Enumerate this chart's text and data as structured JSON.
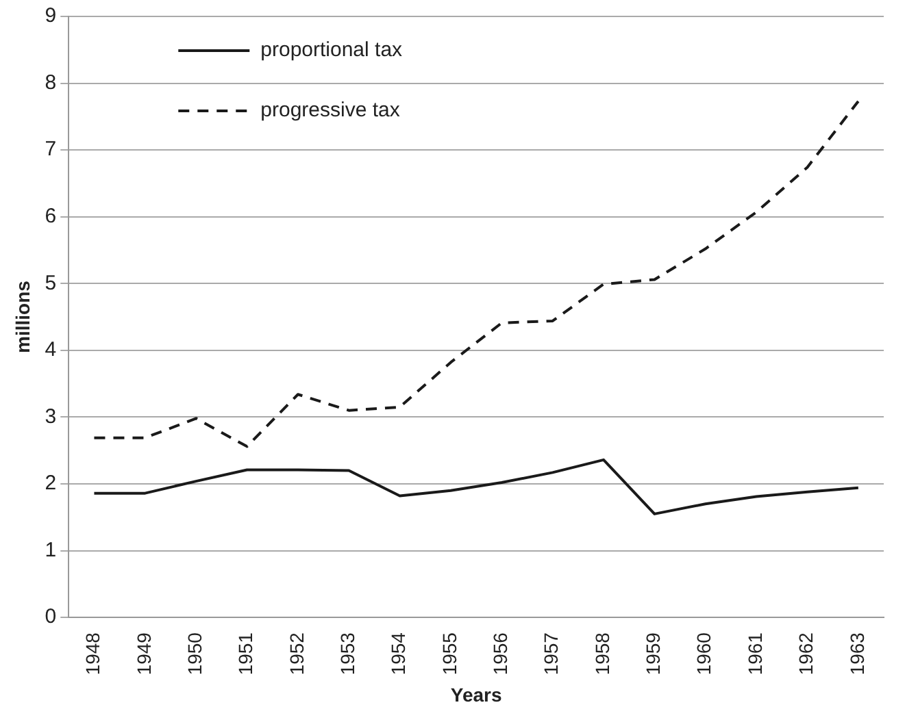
{
  "chart_data": {
    "type": "line",
    "xlabel": "Years",
    "ylabel": "millions",
    "categories": [
      "1948",
      "1949",
      "1950",
      "1951",
      "1952",
      "1953",
      "1954",
      "1955",
      "1956",
      "1957",
      "1958",
      "1959",
      "1960",
      "1961",
      "1962",
      "1963"
    ],
    "series": [
      {
        "name": "proportional tax",
        "color": "#1a1a1a",
        "line_style": "solid",
        "values": [
          1.86,
          1.86,
          2.04,
          2.21,
          2.21,
          2.2,
          1.82,
          1.9,
          2.02,
          2.17,
          2.36,
          1.55,
          1.7,
          1.81,
          1.88,
          1.94
        ]
      },
      {
        "name": "progressive tax",
        "color": "#1a1a1a",
        "line_style": "dashed",
        "values": [
          2.69,
          2.69,
          2.98,
          2.56,
          3.34,
          3.1,
          3.15,
          3.82,
          4.41,
          4.44,
          4.99,
          5.06,
          5.52,
          6.07,
          6.74,
          7.73
        ]
      }
    ],
    "ylim": [
      0,
      9
    ],
    "yticks": [
      0,
      1,
      2,
      3,
      4,
      5,
      6,
      7,
      8,
      9
    ],
    "grid": "y",
    "legend": "top left",
    "marker": "none"
  }
}
